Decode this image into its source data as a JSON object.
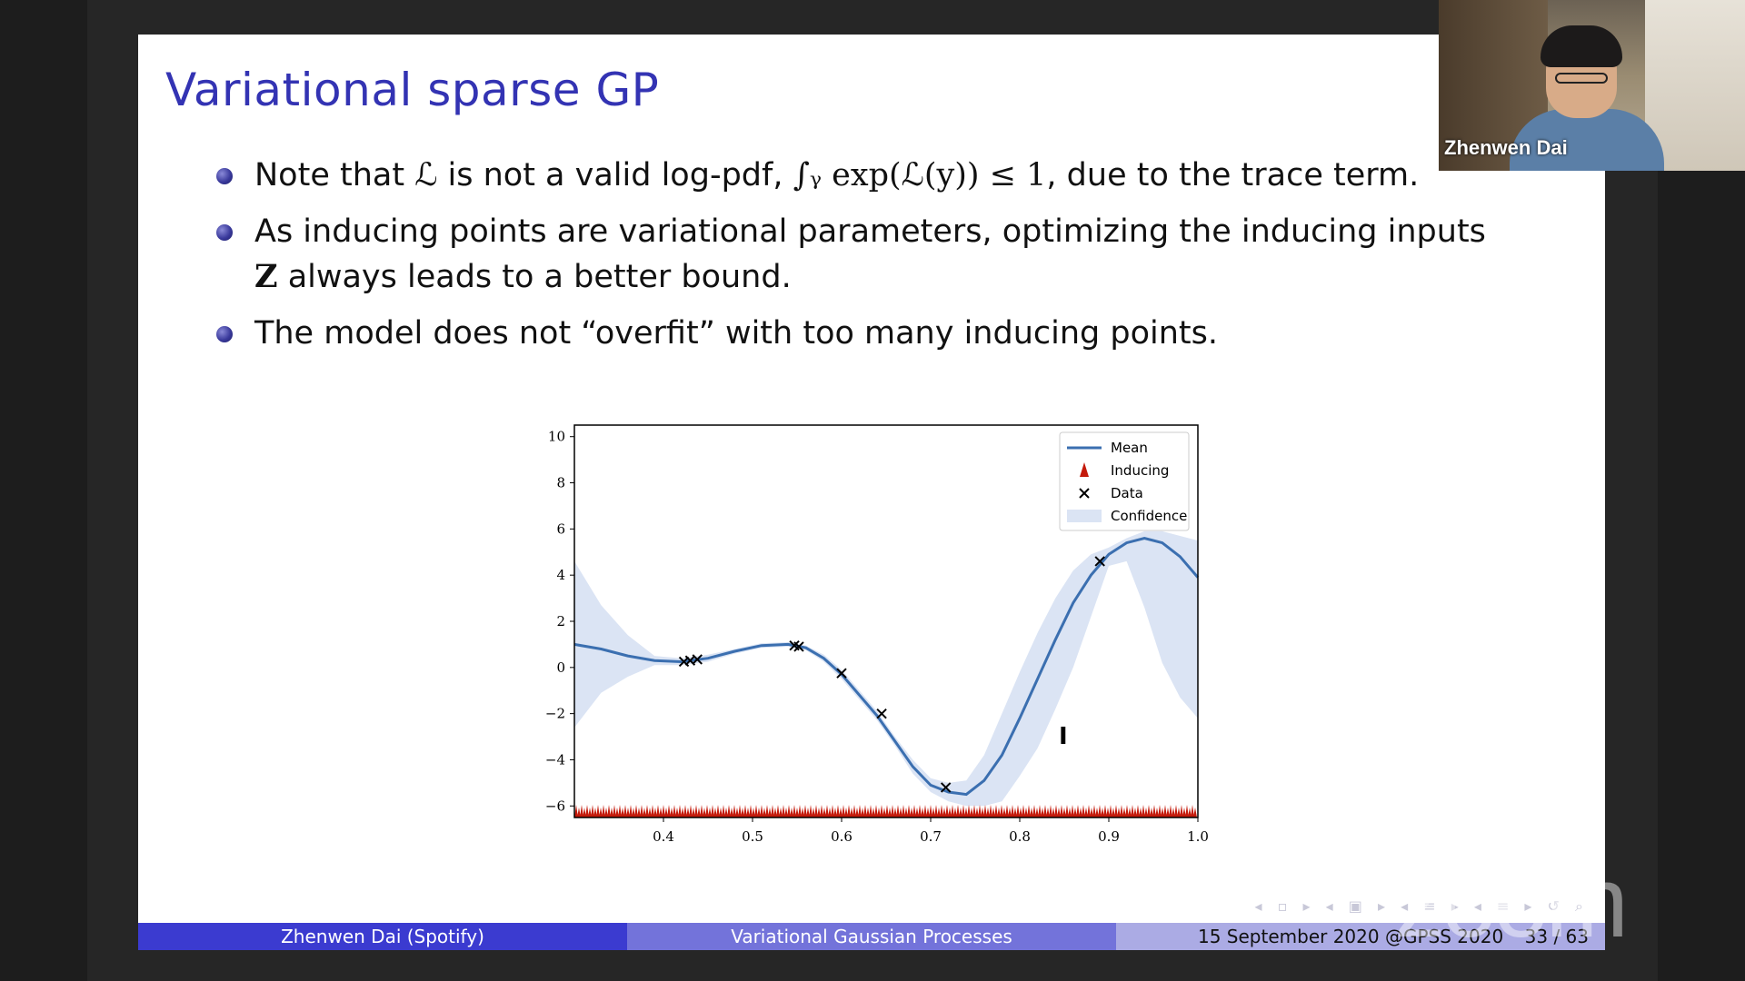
{
  "slide": {
    "title": "Variational sparse GP",
    "bullets": [
      {
        "pre": "Note that ",
        "sym1": "ℒ",
        "mid": " is not a valid log-pdf, ",
        "formula": "∫ᵧ exp(ℒ(y)) ≤ 1",
        "post": ", due to the trace term."
      },
      {
        "pre": "As inducing points are variational parameters, optimizing the inducing inputs ",
        "sym1": "Z",
        "post": " always leads to a better bound."
      },
      {
        "pre": "The model does not “overfit” with too many inducing points."
      }
    ]
  },
  "footer": {
    "author": "Zhenwen Dai  (Spotify)",
    "talk": "Variational Gaussian Processes",
    "date": "15 September 2020 @GPSS 2020",
    "page": "33 / 63"
  },
  "video": {
    "name": "Zhenwen Dai"
  },
  "watermark": "zoom",
  "chart_data": {
    "type": "line",
    "xlim": [
      0.3,
      1.0
    ],
    "ylim": [
      -6.5,
      10.5
    ],
    "xticks": [
      "0.4",
      "0.5",
      "0.6",
      "0.7",
      "0.8",
      "0.9",
      "1.0"
    ],
    "yticks": [
      "−6",
      "−4",
      "−2",
      "0",
      "2",
      "4",
      "6",
      "8",
      "10"
    ],
    "legend": {
      "placement": "top-right",
      "entries": [
        "Mean",
        "Inducing",
        "Data",
        "Confidence"
      ]
    },
    "colors": {
      "mean": "#3b6fb0",
      "confidence": "#dbe4f4",
      "inducing": "#c41a0b",
      "data": "#000000"
    },
    "mean": {
      "x": [
        0.3,
        0.33,
        0.36,
        0.39,
        0.42,
        0.45,
        0.48,
        0.51,
        0.54,
        0.56,
        0.58,
        0.6,
        0.62,
        0.64,
        0.66,
        0.68,
        0.7,
        0.72,
        0.74,
        0.76,
        0.78,
        0.8,
        0.82,
        0.84,
        0.86,
        0.88,
        0.9,
        0.92,
        0.94,
        0.96,
        0.98,
        1.0
      ],
      "y": [
        1.0,
        0.8,
        0.5,
        0.3,
        0.25,
        0.4,
        0.7,
        0.95,
        1.0,
        0.85,
        0.4,
        -0.3,
        -1.2,
        -2.1,
        -3.2,
        -4.3,
        -5.1,
        -5.4,
        -5.5,
        -4.9,
        -3.8,
        -2.2,
        -0.5,
        1.2,
        2.8,
        4.0,
        4.9,
        5.4,
        5.6,
        5.4,
        4.8,
        3.9
      ]
    },
    "upper": [
      4.6,
      2.7,
      1.4,
      0.5,
      0.4,
      0.55,
      0.8,
      1.05,
      1.1,
      0.95,
      0.55,
      -0.1,
      -1.0,
      -1.9,
      -3.0,
      -4.0,
      -4.8,
      -5.0,
      -4.9,
      -3.8,
      -2.0,
      -0.2,
      1.5,
      3.0,
      4.2,
      4.9,
      5.2,
      5.6,
      5.9,
      5.9,
      5.7,
      5.5
    ],
    "lower": [
      -2.6,
      -1.1,
      -0.4,
      0.1,
      0.1,
      0.25,
      0.6,
      0.85,
      0.9,
      0.75,
      0.25,
      -0.5,
      -1.4,
      -2.3,
      -3.4,
      -4.6,
      -5.4,
      -5.8,
      -6.0,
      -6.0,
      -5.8,
      -4.7,
      -3.5,
      -1.8,
      0.0,
      2.2,
      4.4,
      4.6,
      2.6,
      0.2,
      -1.3,
      -2.2
    ],
    "data_points": {
      "x": [
        0.423,
        0.43,
        0.438,
        0.547,
        0.552,
        0.6,
        0.645,
        0.717,
        0.89
      ],
      "y": [
        0.25,
        0.3,
        0.35,
        0.95,
        0.9,
        -0.25,
        -2.0,
        -5.2,
        4.6
      ]
    }
  }
}
